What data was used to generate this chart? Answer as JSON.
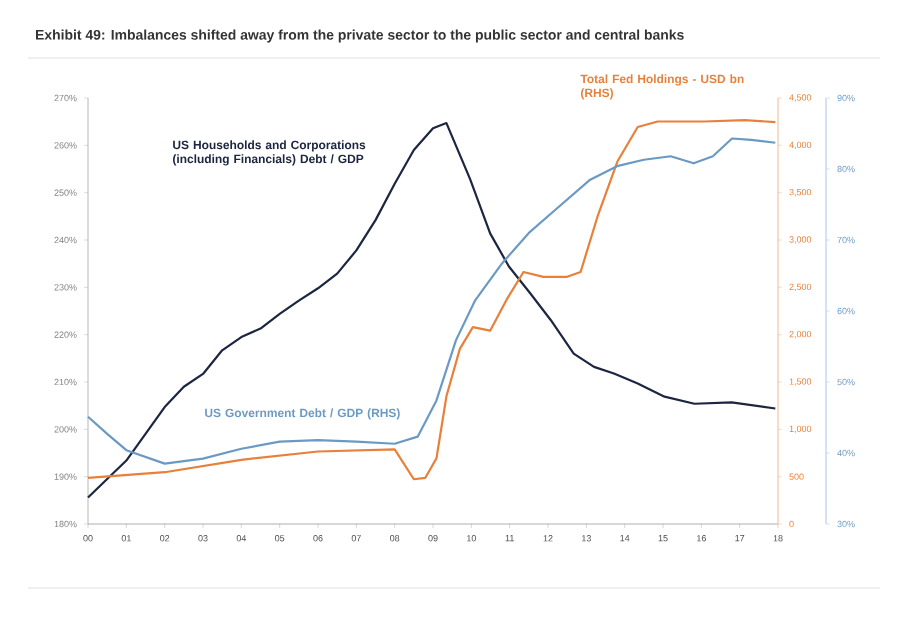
{
  "chart_data": {
    "type": "line",
    "title": "Exhibit 49: Imbalances shifted away from the private sector to the public sector and central banks",
    "x": [
      0,
      1,
      2,
      2.5,
      3,
      3.5,
      4,
      4.5,
      5,
      5.5,
      6,
      6.5,
      7,
      7.5,
      8,
      8.5,
      9,
      9.35,
      9.97,
      10.49,
      10.98,
      11.54,
      12.07,
      12.67,
      13.2,
      13.72,
      14.34,
      15.04,
      15.82,
      16.79,
      17.93
    ],
    "xlim": [
      0,
      18
    ],
    "xticks": [
      {
        "value": 0,
        "label": "00"
      },
      {
        "value": 1,
        "label": "01"
      },
      {
        "value": 2,
        "label": "02"
      },
      {
        "value": 3,
        "label": "03"
      },
      {
        "value": 4,
        "label": "04"
      },
      {
        "value": 5,
        "label": "05"
      },
      {
        "value": 6,
        "label": "06"
      },
      {
        "value": 7,
        "label": "07"
      },
      {
        "value": 8,
        "label": "08"
      },
      {
        "value": 9,
        "label": "09"
      },
      {
        "value": 10,
        "label": "10"
      },
      {
        "value": 11,
        "label": "11"
      },
      {
        "value": 12,
        "label": "12"
      },
      {
        "value": 13,
        "label": "13"
      },
      {
        "value": 14,
        "label": "14"
      },
      {
        "value": 15,
        "label": "15"
      },
      {
        "value": 16,
        "label": "16"
      },
      {
        "value": 17,
        "label": "17"
      },
      {
        "value": 18,
        "label": "18"
      }
    ],
    "ylim": [
      180,
      270
    ],
    "yticks": [
      {
        "value": 180,
        "label": "180%"
      },
      {
        "value": 190,
        "label": "190%"
      },
      {
        "value": 200,
        "label": "200%"
      },
      {
        "value": 210,
        "label": "210%"
      },
      {
        "value": 220,
        "label": "220%"
      },
      {
        "value": 230,
        "label": "230%"
      },
      {
        "value": 240,
        "label": "240%"
      },
      {
        "value": 250,
        "label": "250%"
      },
      {
        "value": 260,
        "label": "260%"
      },
      {
        "value": 270,
        "label": "270%"
      }
    ],
    "y2lim": [
      0,
      4500
    ],
    "y2ticks": [
      0,
      500,
      {
        "value": 1000,
        "label": "1,000"
      },
      {
        "value": 1500,
        "label": "1,500"
      },
      {
        "value": 2000,
        "label": "2,000"
      },
      {
        "value": 2500,
        "label": "2,500"
      },
      {
        "value": 3000,
        "label": "3,000"
      },
      {
        "value": 3500,
        "label": "3,500"
      },
      {
        "value": 4000,
        "label": "4,000"
      },
      {
        "value": 4500,
        "label": "4,500"
      }
    ],
    "y3lim": [
      30,
      90
    ],
    "y3ticks": [
      {
        "value": 30,
        "label": "30%"
      },
      {
        "value": 40,
        "label": "40%"
      },
      {
        "value": 50,
        "label": "50%"
      },
      {
        "value": 60,
        "label": "60%"
      },
      {
        "value": 70,
        "label": "70%"
      },
      {
        "value": 80,
        "label": "80%"
      },
      {
        "value": 90,
        "label": "90%"
      }
    ],
    "series": [
      {
        "name": "US Households and Corporations (including Financials) Debt / GDP",
        "color": "#1c2640",
        "axis": "y",
        "values": [
          185.6,
          193.4,
          204.7,
          209,
          211.7,
          216.7,
          219.5,
          221.3,
          224.4,
          227.2,
          229.8,
          232.9,
          237.8,
          244.2,
          251.9,
          259,
          263.6,
          264.7,
          252.8,
          241.4,
          234.4,
          228.7,
          223.1,
          216,
          213.2,
          211.8,
          209.7,
          206.9,
          205.4,
          205.7,
          204.4
        ]
      },
      {
        "name": "Total Fed Holdings - USD bn (RHS)",
        "color": "#e8803a",
        "axis": "y2",
        "x": [
          0,
          2,
          4,
          6,
          8,
          8.5,
          8.8,
          9.09,
          9.35,
          9.7,
          10.04,
          10.49,
          10.92,
          11.36,
          11.88,
          12.5,
          12.85,
          13.29,
          13.81,
          14.34,
          14.86,
          16.08,
          17.13,
          17.93
        ],
        "values": [
          488,
          547,
          678,
          766,
          788,
          473,
          488,
          693,
          1349,
          1850,
          2079,
          2042,
          2370,
          2662,
          2611,
          2611,
          2662,
          3246,
          3829,
          4194,
          4252,
          4252,
          4267,
          4245
        ]
      },
      {
        "name": "US Government Debt / GDP (RHS)",
        "color": "#6a9ac4",
        "axis": "y3",
        "x": [
          0,
          0.5,
          1,
          2,
          3,
          4,
          5,
          6,
          7,
          8,
          8.6,
          9.09,
          9.6,
          10.1,
          10.8,
          11.5,
          12.2,
          13.1,
          13.8,
          14.5,
          15.2,
          15.8,
          16.3,
          16.8,
          17.3,
          17.93
        ],
        "values": [
          45.1,
          42.7,
          40.4,
          38.5,
          39.2,
          40.6,
          41.6,
          41.8,
          41.6,
          41.3,
          42.3,
          47.4,
          55.9,
          61.5,
          66.7,
          71,
          74.3,
          78.5,
          80.4,
          81.3,
          81.8,
          80.8,
          81.8,
          84.3,
          84.1,
          83.7
        ]
      }
    ]
  }
}
